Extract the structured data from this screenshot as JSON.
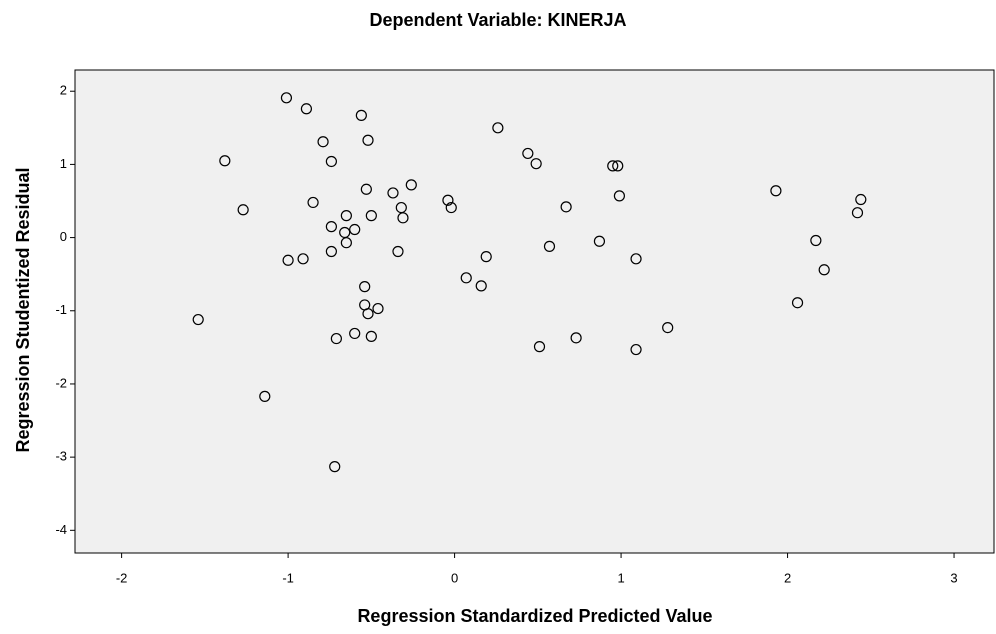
{
  "chart_data": {
    "type": "scatter",
    "title": "Dependent Variable: KINERJA",
    "x_label": "Regression Standardized Predicted Value",
    "y_label": "Regression Studentized Residual",
    "x": [
      -1.01,
      -0.89,
      -1.38,
      -1.27,
      -1.54,
      -1.14,
      -0.79,
      -0.74,
      -0.56,
      -0.52,
      -0.85,
      -0.53,
      -0.65,
      -0.5,
      -0.74,
      -0.66,
      -0.6,
      -0.65,
      -0.74,
      -1.0,
      -0.91,
      -0.37,
      -0.26,
      -0.32,
      -0.31,
      -0.34,
      -0.54,
      -0.54,
      -0.46,
      -0.52,
      -0.6,
      -0.71,
      -0.5,
      -0.72,
      -0.04,
      -0.02,
      0.26,
      0.44,
      0.49,
      0.19,
      0.07,
      0.16,
      0.57,
      0.67,
      0.87,
      0.95,
      0.98,
      0.99,
      1.09,
      0.51,
      0.73,
      1.09,
      1.28,
      1.93,
      2.17,
      2.22,
      2.06,
      2.42,
      2.44
    ],
    "y": [
      1.91,
      1.76,
      1.05,
      0.38,
      -1.12,
      -2.17,
      1.31,
      1.04,
      1.67,
      1.33,
      0.48,
      0.66,
      0.3,
      0.3,
      0.15,
      0.07,
      0.11,
      -0.07,
      -0.19,
      -0.31,
      -0.29,
      0.61,
      0.72,
      0.41,
      0.27,
      -0.19,
      -0.67,
      -0.92,
      -0.97,
      -1.04,
      -1.31,
      -1.38,
      -1.35,
      -3.13,
      0.51,
      0.41,
      1.5,
      1.15,
      1.01,
      -0.26,
      -0.55,
      -0.66,
      -0.12,
      0.42,
      -0.05,
      0.98,
      0.98,
      0.57,
      -0.29,
      -1.49,
      -1.37,
      -1.53,
      -1.23,
      0.64,
      -0.04,
      -0.44,
      -0.89,
      0.34,
      0.52
    ],
    "color": "#000000",
    "xlim": [
      -2.28,
      3.24
    ],
    "ylim": [
      -4.31,
      2.29
    ],
    "xticks": [
      -2,
      -1,
      0,
      1,
      2,
      3
    ],
    "yticks": [
      -4,
      -3,
      -2,
      -1,
      0,
      1,
      2
    ]
  }
}
